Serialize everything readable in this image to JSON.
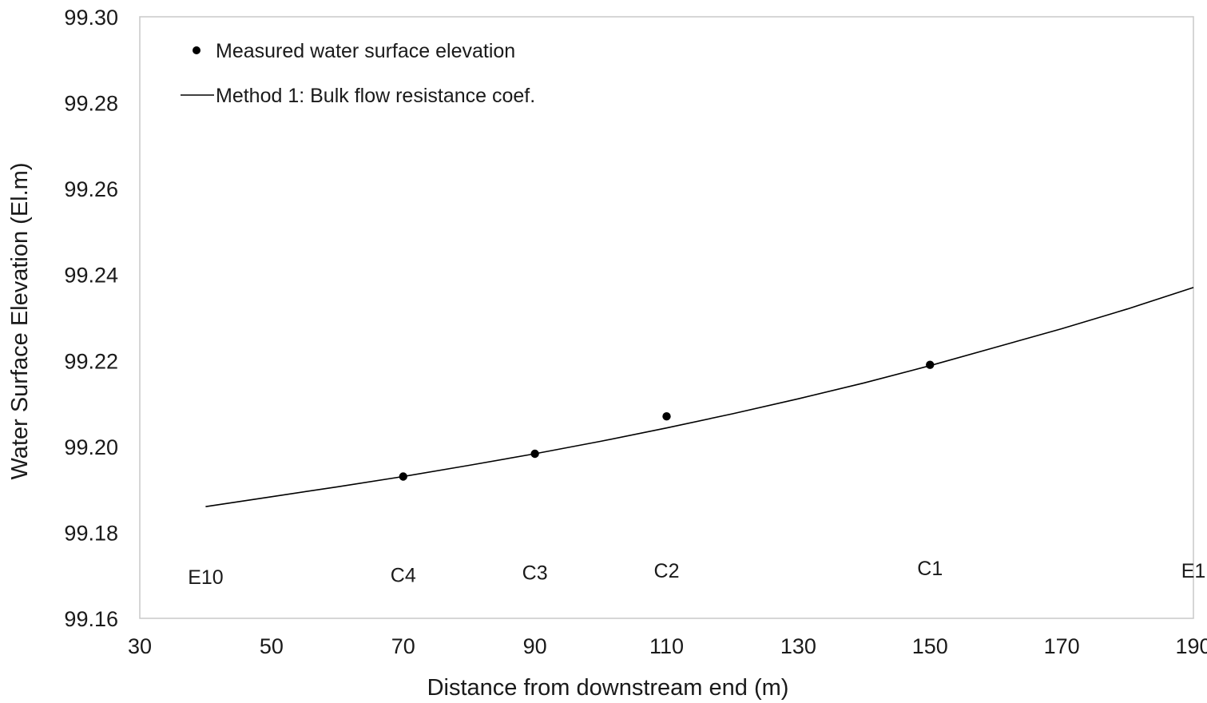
{
  "chart_data": {
    "type": "line",
    "title": "",
    "xlabel": "Distance from downstream end (m)",
    "ylabel": "Water Surface Elevation (El.m)",
    "xlim": [
      30,
      190
    ],
    "ylim": [
      99.16,
      99.3
    ],
    "x_ticks": [
      "30",
      "50",
      "70",
      "90",
      "110",
      "130",
      "150",
      "170",
      "190"
    ],
    "y_ticks": [
      "99.16",
      "99.18",
      "99.20",
      "99.22",
      "99.24",
      "99.26",
      "99.28",
      "99.30"
    ],
    "grid": false,
    "legend_position": "top-left",
    "series": [
      {
        "name": "Measured water surface elevation",
        "kind": "scatter",
        "color": "#000000",
        "points": [
          {
            "x": 70,
            "y": 99.193
          },
          {
            "x": 90,
            "y": 99.1983
          },
          {
            "x": 110,
            "y": 99.207
          },
          {
            "x": 150,
            "y": 99.219
          }
        ]
      },
      {
        "name": "Method 1: Bulk flow resistance coef.",
        "kind": "line",
        "color": "#000000",
        "points": [
          {
            "x": 40,
            "y": 99.186
          },
          {
            "x": 50,
            "y": 99.1883
          },
          {
            "x": 60,
            "y": 99.1906
          },
          {
            "x": 70,
            "y": 99.193
          },
          {
            "x": 80,
            "y": 99.1956
          },
          {
            "x": 90,
            "y": 99.1983
          },
          {
            "x": 100,
            "y": 99.2012
          },
          {
            "x": 110,
            "y": 99.2043
          },
          {
            "x": 120,
            "y": 99.2076
          },
          {
            "x": 130,
            "y": 99.2111
          },
          {
            "x": 140,
            "y": 99.2148
          },
          {
            "x": 150,
            "y": 99.2188
          },
          {
            "x": 160,
            "y": 99.2231
          },
          {
            "x": 170,
            "y": 99.2274
          },
          {
            "x": 180,
            "y": 99.232
          },
          {
            "x": 190,
            "y": 99.237
          }
        ]
      }
    ],
    "station_labels": [
      {
        "text": "E10",
        "x": 40,
        "y": 99.168
      },
      {
        "text": "C4",
        "x": 70,
        "y": 99.1685
      },
      {
        "text": "C3",
        "x": 90,
        "y": 99.169
      },
      {
        "text": "C2",
        "x": 110,
        "y": 99.1695
      },
      {
        "text": "C1",
        "x": 150,
        "y": 99.17
      },
      {
        "text": "E1",
        "x": 190,
        "y": 99.1695
      }
    ]
  }
}
